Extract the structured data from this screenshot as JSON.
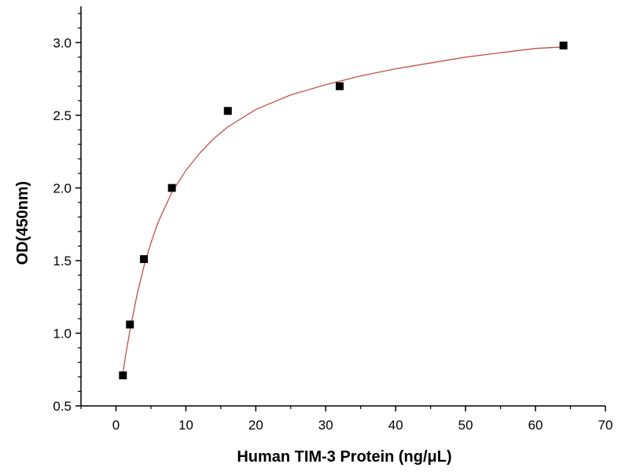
{
  "chart_data": {
    "type": "scatter",
    "title": "",
    "xlabel": "Human TIM-3 Protein (ng/μL)",
    "ylabel": "OD(450nm)",
    "xlim": [
      -5,
      70
    ],
    "ylim": [
      0.5,
      3.25
    ],
    "xticks": [
      0,
      10,
      20,
      30,
      40,
      50,
      60,
      70
    ],
    "yticks": [
      0.5,
      1.0,
      1.5,
      2.0,
      2.5,
      3.0
    ],
    "xtick_labels": [
      "0",
      "10",
      "20",
      "30",
      "40",
      "50",
      "60",
      "70"
    ],
    "ytick_labels": [
      "0.5",
      "1.0",
      "1.5",
      "2.0",
      "2.5",
      "3.0"
    ],
    "grid": false,
    "legend": "none",
    "series": [
      {
        "marker": "square",
        "color": "#000000",
        "x": [
          1,
          2,
          4,
          8,
          16,
          32,
          64
        ],
        "y": [
          0.71,
          1.06,
          1.51,
          2.0,
          2.53,
          2.7,
          2.98
        ]
      }
    ],
    "fit": {
      "type": "hyperbolic",
      "color": "#c0504d",
      "points": [
        [
          1,
          0.73
        ],
        [
          1.5,
          0.88
        ],
        [
          2,
          1.02
        ],
        [
          3,
          1.26
        ],
        [
          4,
          1.46
        ],
        [
          5,
          1.62
        ],
        [
          6,
          1.76
        ],
        [
          8,
          1.97
        ],
        [
          10,
          2.12
        ],
        [
          12,
          2.24
        ],
        [
          14,
          2.34
        ],
        [
          16,
          2.42
        ],
        [
          20,
          2.54
        ],
        [
          25,
          2.64
        ],
        [
          30,
          2.71
        ],
        [
          35,
          2.77
        ],
        [
          40,
          2.82
        ],
        [
          45,
          2.86
        ],
        [
          50,
          2.9
        ],
        [
          55,
          2.93
        ],
        [
          60,
          2.96
        ],
        [
          64,
          2.97
        ]
      ]
    }
  }
}
